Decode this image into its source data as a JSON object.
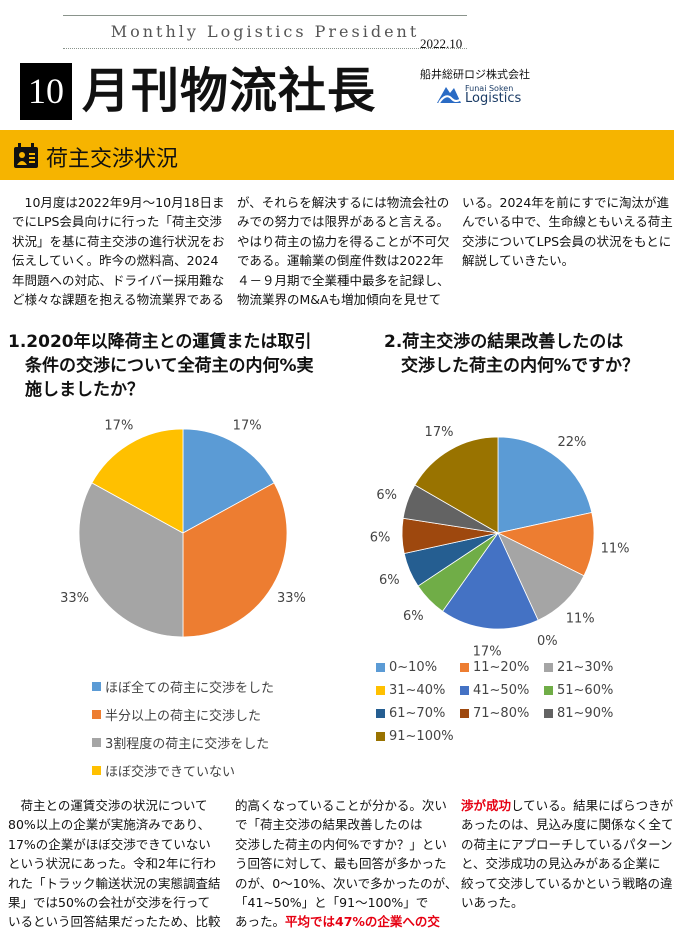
{
  "header": {
    "subtitle": "Monthly Logistics President",
    "date": "2022.10",
    "issue_number": "10",
    "title": "月刊物流社長",
    "company": "船井総研ロジ株式会社",
    "logo_small": "Funai Soken",
    "logo_big": "Logistics"
  },
  "section": {
    "title": "荷主交渉状況",
    "icon": "person-badge-icon",
    "band_color": "#f6b400"
  },
  "intro": {
    "columns": [
      [
        "　10月度は2022年9月～10月18日ま",
        "でにLPS会員向けに行った「荷主交渉",
        "状況」を基に荷主交渉の進行状況をお",
        "伝えしていく。昨今の燃料高、2024",
        "年問題への対応、ドライバー採用難な",
        "ど様々な課題を抱える物流業界である"
      ],
      [
        "が、それらを解決するには物流会社の",
        "みでの努力では限界があると言える。",
        "やはり荷主の協力を得ることが不可欠",
        "である。運輸業の倒産件数は2022年",
        "４－９月期で全業種中最多を記録し、",
        "物流業界のM&Aも増加傾向を見せて"
      ],
      [
        "いる。2024年を前にすでに淘汰が進",
        "んでいる中で、生命線ともいえる荷主",
        "交渉についてLPS会員の状況をもとに",
        "解説していきたい。"
      ]
    ]
  },
  "questions": {
    "q1": [
      "1.2020年以降荷主との運賃または取引",
      "　条件の交渉について全荷主の内何%実",
      "　施しましたか？"
    ],
    "q2": [
      "2.荷主交渉の結果改善したのは",
      "　交渉した荷主の内何%ですか？"
    ]
  },
  "chart_data": [
    {
      "type": "pie",
      "categories": [
        "ほぼ全ての荷主に交渉をした",
        "半分以上の荷主に交渉した",
        "3割程度の荷主に交渉をした",
        "ほぼ交渉できていない"
      ],
      "values": [
        17,
        33,
        33,
        17
      ],
      "labels": [
        "17%",
        "33%",
        "33%",
        "17%"
      ],
      "colors": [
        "#5b9bd5",
        "#ed7d31",
        "#a5a5a5",
        "#ffc000"
      ],
      "legend_position": "bottom"
    },
    {
      "type": "pie",
      "categories": [
        "0~10%",
        "11~20%",
        "21~30%",
        "31~40%",
        "41~50%",
        "51~60%",
        "61~70%",
        "71~80%",
        "81~90%",
        "91~100%"
      ],
      "values": [
        22,
        11,
        11,
        0,
        17,
        6,
        6,
        6,
        6,
        17
      ],
      "labels": [
        "22%",
        "11%",
        "11%",
        "0%",
        "17%",
        "6%",
        "6%",
        "6%",
        "6%",
        "17%"
      ],
      "colors": [
        "#5b9bd5",
        "#ed7d31",
        "#a5a5a5",
        "#ffc000",
        "#4472c4",
        "#70ad47",
        "#255e91",
        "#9e480e",
        "#636363",
        "#997300"
      ],
      "legend_position": "bottom"
    }
  ],
  "body": {
    "columns": [
      [
        [
          {
            "t": "　荷主との運賃交渉の状況について"
          }
        ],
        [
          {
            "t": "80%以上の企業が実施済みであり、"
          }
        ],
        [
          {
            "t": "17%の企業がほぼ交渉できていない"
          }
        ],
        [
          {
            "t": "という状況にあった。令和2年に行わ"
          }
        ],
        [
          {
            "t": "れた「トラック輸送状況の実態調査結"
          }
        ],
        [
          {
            "t": "果」では50%の会社が交渉を行って"
          }
        ],
        [
          {
            "t": "いるという回答結果だったため、比較"
          }
        ]
      ],
      [
        [
          {
            "t": "的高くなっていることが分かる。次い"
          }
        ],
        [
          {
            "t": "で「荷主交渉の結果改善したのは"
          }
        ],
        [
          {
            "t": "交渉した荷主の内何%ですか？」とい"
          }
        ],
        [
          {
            "t": "う回答に対して、最も回答が多かった"
          }
        ],
        [
          {
            "t": "のが、0～10%、次いで多かったのが、"
          }
        ],
        [
          {
            "t": "「41~50%」と「91～100%」で"
          }
        ],
        [
          {
            "t": "あった。"
          },
          {
            "t": "平均では47%の企業への交",
            "red": true
          }
        ]
      ],
      [
        [
          {
            "t": "渉が成功",
            "red": true
          },
          {
            "t": "している。結果にばらつきが"
          }
        ],
        [
          {
            "t": "あったのは、見込み度に関係なく全て"
          }
        ],
        [
          {
            "t": "の荷主にアプローチしているパターン"
          }
        ],
        [
          {
            "t": "と、交渉成功の見込みがある企業に"
          }
        ],
        [
          {
            "t": "絞って交渉しているかという戦略の違"
          }
        ],
        [
          {
            "t": "いあった。"
          }
        ]
      ]
    ]
  }
}
